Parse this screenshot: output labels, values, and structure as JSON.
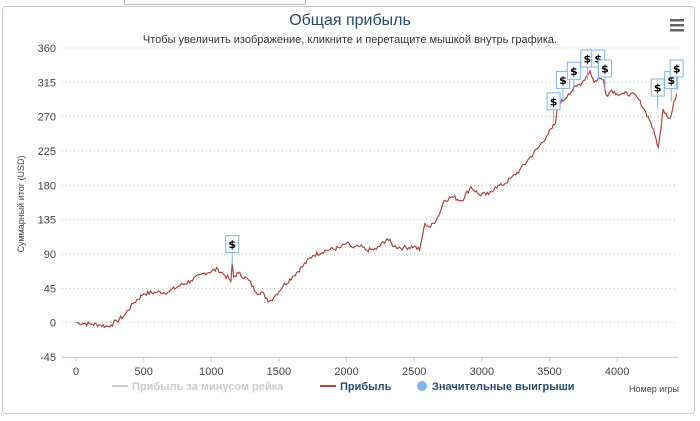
{
  "chart_data": {
    "type": "line",
    "title": "Общая прибыль",
    "subtitle": "Чтобы увеличить изображение, кликните и перетащите мышкой внутрь графика.",
    "xlabel": "Номер игры",
    "ylabel": "Суммарный итог (USD)",
    "xlim": [
      0,
      4450
    ],
    "ylim": [
      -45,
      360
    ],
    "x_ticks": [
      0,
      500,
      1000,
      1500,
      2000,
      2500,
      3000,
      3500,
      4000
    ],
    "y_ticks": [
      -45,
      0,
      45,
      90,
      135,
      180,
      225,
      270,
      315,
      360
    ],
    "grid": "horizontal-dotted",
    "legend_position": "bottom",
    "series": [
      {
        "name": "Прибыль за минусом рейка",
        "color": "#cccccc",
        "hidden": true,
        "points": []
      },
      {
        "name": "Прибыль",
        "color": "#aa4643",
        "points": [
          [
            0,
            0
          ],
          [
            60,
            -1
          ],
          [
            120,
            -2
          ],
          [
            180,
            -3
          ],
          [
            230,
            -5
          ],
          [
            260,
            -3
          ],
          [
            300,
            2
          ],
          [
            360,
            10
          ],
          [
            420,
            25
          ],
          [
            500,
            38
          ],
          [
            600,
            40
          ],
          [
            680,
            40
          ],
          [
            760,
            48
          ],
          [
            850,
            55
          ],
          [
            950,
            65
          ],
          [
            1050,
            70
          ],
          [
            1100,
            62
          ],
          [
            1130,
            58
          ],
          [
            1145,
            54
          ],
          [
            1155,
            78
          ],
          [
            1165,
            60
          ],
          [
            1200,
            65
          ],
          [
            1280,
            55
          ],
          [
            1330,
            40
          ],
          [
            1380,
            40
          ],
          [
            1400,
            32
          ],
          [
            1430,
            28
          ],
          [
            1470,
            35
          ],
          [
            1530,
            48
          ],
          [
            1600,
            60
          ],
          [
            1680,
            75
          ],
          [
            1750,
            88
          ],
          [
            1850,
            95
          ],
          [
            1950,
            98
          ],
          [
            2000,
            104
          ],
          [
            2050,
            98
          ],
          [
            2100,
            100
          ],
          [
            2150,
            95
          ],
          [
            2220,
            96
          ],
          [
            2300,
            110
          ],
          [
            2350,
            100
          ],
          [
            2420,
            98
          ],
          [
            2500,
            100
          ],
          [
            2540,
            95
          ],
          [
            2580,
            130
          ],
          [
            2620,
            125
          ],
          [
            2680,
            140
          ],
          [
            2720,
            160
          ],
          [
            2780,
            165
          ],
          [
            2850,
            160
          ],
          [
            2920,
            178
          ],
          [
            2980,
            168
          ],
          [
            3050,
            168
          ],
          [
            3100,
            178
          ],
          [
            3150,
            180
          ],
          [
            3220,
            190
          ],
          [
            3280,
            200
          ],
          [
            3350,
            215
          ],
          [
            3420,
            230
          ],
          [
            3480,
            245
          ],
          [
            3520,
            255
          ],
          [
            3545,
            262
          ],
          [
            3565,
            290
          ],
          [
            3600,
            290
          ],
          [
            3640,
            300
          ],
          [
            3700,
            310
          ],
          [
            3740,
            315
          ],
          [
            3770,
            322
          ],
          [
            3800,
            330
          ],
          [
            3830,
            315
          ],
          [
            3860,
            320
          ],
          [
            3900,
            318
          ],
          [
            3920,
            298
          ],
          [
            3960,
            305
          ],
          [
            4000,
            300
          ],
          [
            4050,
            300
          ],
          [
            4100,
            300
          ],
          [
            4150,
            295
          ],
          [
            4200,
            280
          ],
          [
            4250,
            262
          ],
          [
            4280,
            245
          ],
          [
            4305,
            230
          ],
          [
            4325,
            255
          ],
          [
            4340,
            280
          ],
          [
            4360,
            275
          ],
          [
            4380,
            268
          ],
          [
            4400,
            272
          ],
          [
            4420,
            290
          ],
          [
            4440,
            300
          ]
        ]
      },
      {
        "name": "Значительные выигрыши",
        "color": "#7cb5ec",
        "marker": "flag",
        "flag_label": "$",
        "points": [
          [
            1155,
            75
          ],
          [
            3530,
            262
          ],
          [
            3600,
            290
          ],
          [
            3680,
            302
          ],
          [
            3780,
            318
          ],
          [
            3860,
            318
          ],
          [
            3910,
            305
          ],
          [
            4300,
            280
          ],
          [
            4400,
            290
          ],
          [
            4440,
            305
          ]
        ]
      }
    ]
  },
  "ui": {
    "menu_icon": "hamburger-menu-icon"
  }
}
